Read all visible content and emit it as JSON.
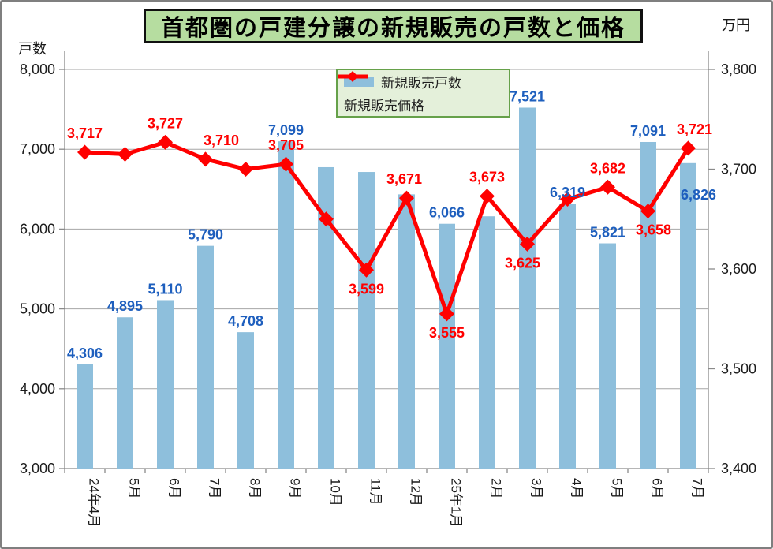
{
  "title": {
    "text": "首都圏の戸建分譲の新規販売の戸数と価格",
    "bg_color": "#b6dda0"
  },
  "left_axis": {
    "title": "戸数",
    "ticks": [
      "8,000",
      "7,000",
      "6,000",
      "5,000",
      "4,000",
      "3,000"
    ]
  },
  "right_axis": {
    "title": "万円",
    "ticks": [
      "3,800",
      "3,700",
      "3,600",
      "3,500",
      "3,400"
    ]
  },
  "legend": {
    "items": [
      {
        "label": "新規販売戸数",
        "type": "bar",
        "color": "#8ebfdc"
      },
      {
        "label": "新規販売価格",
        "type": "line",
        "color": "#ff0000"
      }
    ]
  },
  "colors": {
    "bar": "#8ebfdc",
    "bar_label": "#1e5fbe",
    "line": "#ff0000",
    "line_label": "#ff0000",
    "grid": "#a6a6a6",
    "axis": "#8a8a8a",
    "tick_text": "#1a1a1a"
  },
  "chart_data": {
    "type": "bar+line combo",
    "title": "首都圏の戸建分譲の新規販売の戸数と価格",
    "categories": [
      "24年4月",
      "5月",
      "6月",
      "7月",
      "8月",
      "9月",
      "10月",
      "11月",
      "12月",
      "25年1月",
      "2月",
      "3月",
      "4月",
      "5月",
      "6月",
      "7月"
    ],
    "series": [
      {
        "name": "新規販売戸数",
        "type": "bar",
        "axis": "left",
        "values": [
          4306,
          4895,
          5110,
          5790,
          4708,
          7099,
          6775,
          6715,
          6435,
          6066,
          6160,
          7521,
          6319,
          5821,
          7091,
          6826
        ],
        "labels": [
          "4,306",
          "4,895",
          "5,110",
          "5,790",
          "4,708",
          "7,099",
          "",
          "",
          "",
          "6,066",
          "",
          "7,521",
          "6,319",
          "5,821",
          "7,091",
          "6,826"
        ]
      },
      {
        "name": "新規販売価格",
        "type": "line",
        "axis": "right",
        "values": [
          3717,
          3715,
          3727,
          3710,
          3700,
          3705,
          3650,
          3599,
          3671,
          3555,
          3673,
          3625,
          3670,
          3682,
          3658,
          3721
        ],
        "labels": [
          "3,717",
          "",
          "3,727",
          "3,710",
          "",
          "3,705",
          "",
          "3,599",
          "3,671",
          "3,555",
          "3,673",
          "3,625",
          "",
          "3,682",
          "3,658",
          "3,721"
        ]
      }
    ],
    "left_ylim": [
      3000,
      8000
    ],
    "left_step": 1000,
    "right_ylim": [
      3400,
      3800
    ],
    "right_step": 100,
    "grid": true,
    "legend_position": "top-center",
    "note_unlabeled_values_estimated": true
  }
}
